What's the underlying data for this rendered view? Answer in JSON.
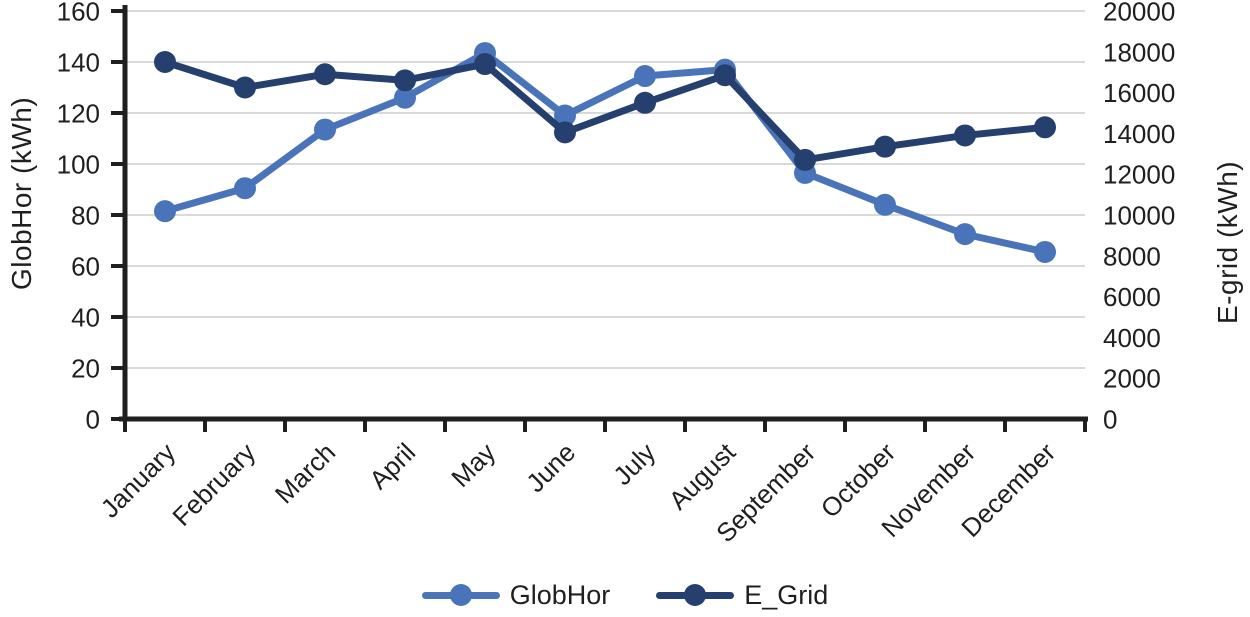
{
  "chart_data": {
    "type": "line",
    "title": "",
    "categories": [
      "January",
      "February",
      "March",
      "April",
      "May",
      "June",
      "July",
      "August",
      "September",
      "October",
      "November",
      "December"
    ],
    "series": [
      {
        "name": "GlobHor",
        "axis": "left",
        "color": "#4a74b9",
        "values": [
          81.5,
          90.5,
          113.5,
          126,
          143.5,
          119,
          134.5,
          137,
          96.5,
          84,
          72.5,
          65.5
        ]
      },
      {
        "name": "E_Grid",
        "axis": "right",
        "color": "#25406f",
        "values": [
          17500,
          16250,
          16900,
          16600,
          17400,
          14050,
          15500,
          16850,
          12700,
          13350,
          13900,
          14300
        ]
      }
    ],
    "left_axis": {
      "label": "GlobHor (kWh)",
      "min": 0,
      "max": 160,
      "step": 20
    },
    "right_axis": {
      "label": "E-grid (kWh)",
      "min": 0,
      "max": 20000,
      "step": 2000
    },
    "legend_position": "bottom",
    "grid": true,
    "grid_color": "#d9d9d9",
    "axis_color": "#1f1f1f",
    "text_color": "#1f1f1f"
  }
}
